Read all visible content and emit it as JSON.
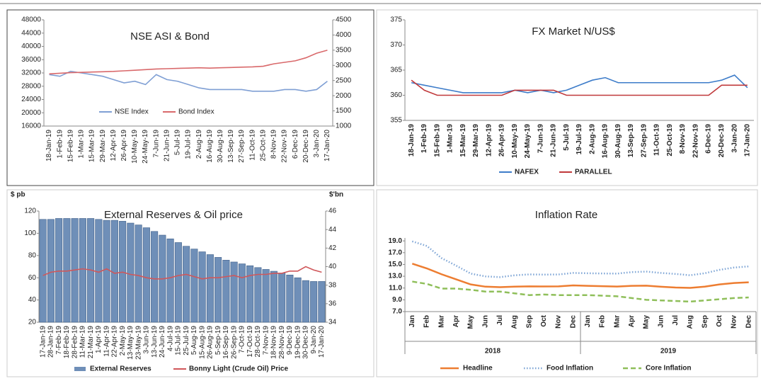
{
  "chart_data": [
    {
      "type": "line",
      "title": "NSE ASI & Bond",
      "categories": [
        "18-Jan-19",
        "1-Feb-19",
        "15-Feb-19",
        "1-Mar-19",
        "15-Mar-19",
        "29-Mar-19",
        "12-Apr-19",
        "26-Apr-19",
        "10-May-19",
        "24-May-19",
        "7-Jun-19",
        "21-Jun-19",
        "5-Jul-19",
        "19-Jul-19",
        "2-Aug-19",
        "16-Aug-19",
        "30-Aug-19",
        "13-Sep-19",
        "27-Sep-19",
        "11-Oct-19",
        "25-Oct-19",
        "8-Nov-19",
        "22-Nov-19",
        "6-Dec-19",
        "20-Dec-19",
        "3-Jan-20",
        "17-Jan-20"
      ],
      "series": [
        {
          "name": "NSE Index",
          "color": "#7f9fd4",
          "values": [
            31500,
            31000,
            32500,
            32000,
            31500,
            31000,
            30000,
            29000,
            29500,
            28500,
            31500,
            30000,
            29500,
            28500,
            27500,
            27000,
            27000,
            27000,
            27000,
            26500,
            26500,
            26500,
            27000,
            27000,
            26500,
            27000,
            29500
          ]
        },
        {
          "name": "Bond Index",
          "color": "#d9696b",
          "axis": "y2",
          "values": [
            2720,
            2740,
            2760,
            2770,
            2780,
            2790,
            2800,
            2820,
            2840,
            2860,
            2880,
            2890,
            2900,
            2910,
            2920,
            2910,
            2920,
            2930,
            2940,
            2950,
            2970,
            3050,
            3100,
            3150,
            3250,
            3400,
            3500
          ]
        }
      ],
      "ylim": [
        16000,
        48000
      ],
      "yticks": [
        16000,
        20000,
        24000,
        28000,
        32000,
        36000,
        40000,
        44000,
        48000
      ],
      "y2lim": [
        1000,
        4500
      ],
      "y2ticks": [
        1000,
        1500,
        2000,
        2500,
        3000,
        3500,
        4000,
        4500
      ]
    },
    {
      "type": "line",
      "title": "FX Market N/US$",
      "categories": [
        "18-Jan-19",
        "1-Feb-19",
        "15-Feb-19",
        "1-Mar-19",
        "15-Mar-19",
        "29-Mar-19",
        "12-Apr-19",
        "26-Apr-19",
        "10-May-19",
        "24-May-19",
        "7-Jun-19",
        "21-Jun-19",
        "5-Jul-19",
        "19-Jul-19",
        "2-Aug-19",
        "16-Aug-19",
        "30-Aug-19",
        "13-Sep-19",
        "27-Sep-19",
        "11-Oct-19",
        "25-Oct-19",
        "8-Nov-19",
        "22-Nov-19",
        "6-Dec-19",
        "20-Dec-19",
        "3-Jan-20",
        "17-Jan-20"
      ],
      "series": [
        {
          "name": "NAFEX",
          "color": "#3d7cc9",
          "values": [
            362.5,
            362,
            361.5,
            361,
            360.5,
            360.5,
            360.5,
            360.5,
            361,
            360.5,
            361,
            360.5,
            361,
            362,
            363,
            363.5,
            362.5,
            362.5,
            362.5,
            362.5,
            362.5,
            362.5,
            362.5,
            362.5,
            363,
            364,
            361.5
          ]
        },
        {
          "name": "PARALLEL",
          "color": "#c0393b",
          "values": [
            363,
            361,
            360,
            360,
            360,
            360,
            360,
            360,
            361,
            361,
            361,
            361,
            360,
            360,
            360,
            360,
            360,
            360,
            360,
            360,
            360,
            360,
            360,
            360,
            362,
            362,
            362
          ]
        }
      ],
      "ylim": [
        355,
        375
      ],
      "yticks": [
        355,
        360,
        365,
        370,
        375
      ]
    },
    {
      "type": "bar",
      "title": "External Reserves & Oil price",
      "ylabel": "$ pb",
      "y2label": "$'bn",
      "categories": [
        "17-Jan-19",
        "28-Jan-19",
        "7-Feb-19",
        "18-Feb-19",
        "28-Feb-19",
        "11-Mar-19",
        "21-Mar-19",
        "1-Apr-19",
        "11-Apr-19",
        "22-Apr-19",
        "2-May-19",
        "13-May-19",
        "23-May-19",
        "3-Jun-19",
        "13-Jun-19",
        "24-Jun-19",
        "4-Jul-19",
        "15-Jul-19",
        "25-Jul-19",
        "5-Aug-19",
        "15-Aug-19",
        "26-Aug-19",
        "5-Sep-19",
        "16-Sep-19",
        "26-Sep-19",
        "7-Oct-19",
        "17-Oct-19",
        "28-Oct-19",
        "7-Nov-19",
        "18-Nov-19",
        "28-Nov-19",
        "9-Dec-19",
        "19-Dec-19",
        "30-Dec-19",
        "9-Jan-20",
        "17-Jan-20"
      ],
      "series": [
        {
          "name": "External Reserves",
          "color": "#6f8fb8",
          "type": "bar",
          "axis": "y2",
          "values": [
            45.1,
            45.1,
            45.2,
            45.2,
            45.2,
            45.2,
            45.2,
            45.1,
            45.0,
            45.0,
            44.9,
            44.7,
            44.5,
            44.2,
            43.8,
            43.4,
            43.0,
            42.6,
            42.2,
            41.9,
            41.6,
            41.3,
            41.0,
            40.7,
            40.5,
            40.3,
            40.1,
            39.9,
            39.7,
            39.5,
            39.3,
            39.1,
            38.8,
            38.5,
            38.4,
            38.4
          ]
        },
        {
          "name": "Bonny Light (Crude Oil) Price",
          "color": "#d0575a",
          "type": "line",
          "values": [
            62,
            65,
            66,
            66,
            67,
            68,
            67,
            65,
            68,
            64,
            65,
            63,
            62,
            60,
            59,
            59,
            60,
            62,
            63,
            61,
            59,
            60,
            60,
            61,
            62,
            60,
            62,
            63,
            63,
            64,
            64,
            66,
            66,
            70,
            67,
            65
          ]
        }
      ],
      "ylim": [
        20,
        120
      ],
      "yticks": [
        20,
        40,
        60,
        80,
        100,
        120
      ],
      "y2lim": [
        34,
        46
      ],
      "y2ticks": [
        34,
        36,
        38,
        40,
        42,
        44,
        46
      ]
    },
    {
      "type": "line",
      "title": "Inflation Rate",
      "categories": [
        "Jan",
        "Feb",
        "Mar",
        "Apr",
        "May",
        "Jun",
        "Jul",
        "Aug",
        "Sep",
        "Oct",
        "Nov",
        "Dec",
        "Jan",
        "Feb",
        "Mar",
        "Apr",
        "May",
        "Jun",
        "Jul",
        "Aug",
        "Sep",
        "Oct",
        "Nov",
        "Dec"
      ],
      "groups": [
        "2018",
        "2019"
      ],
      "series": [
        {
          "name": "Headline",
          "color": "#ed7d31",
          "values": [
            15.13,
            14.33,
            13.34,
            12.48,
            11.61,
            11.23,
            11.14,
            11.23,
            11.28,
            11.26,
            11.28,
            11.44,
            11.37,
            11.31,
            11.25,
            11.37,
            11.4,
            11.22,
            11.08,
            11.02,
            11.24,
            11.61,
            11.85,
            11.98
          ]
        },
        {
          "name": "Food Inflation",
          "color": "#7fa6d6",
          "dash": "dotted",
          "values": [
            18.92,
            18.14,
            16.08,
            14.8,
            13.45,
            12.98,
            12.85,
            13.16,
            13.31,
            13.28,
            13.3,
            13.56,
            13.51,
            13.47,
            13.45,
            13.7,
            13.79,
            13.56,
            13.39,
            13.17,
            13.51,
            14.09,
            14.48,
            14.67
          ]
        },
        {
          "name": "Core Inflation",
          "color": "#8fbf5a",
          "dash": "dashed",
          "values": [
            12.1,
            11.7,
            10.9,
            10.9,
            10.7,
            10.4,
            10.4,
            10.1,
            9.8,
            9.9,
            9.8,
            9.8,
            9.8,
            9.7,
            9.6,
            9.3,
            9.0,
            8.9,
            8.8,
            8.7,
            8.9,
            9.1,
            9.3,
            9.4
          ]
        }
      ],
      "ylim": [
        7,
        19.5
      ],
      "yticks": [
        {
          "value": 7,
          "label": "7.0"
        },
        {
          "value": 9,
          "label": "9.0"
        },
        {
          "value": 11,
          "label": "11.0"
        },
        {
          "value": 13,
          "label": "13.0"
        },
        {
          "value": 15,
          "label": "15.0"
        },
        {
          "value": 17,
          "label": "17.0"
        },
        {
          "value": 19,
          "label": "19.0"
        }
      ]
    }
  ]
}
